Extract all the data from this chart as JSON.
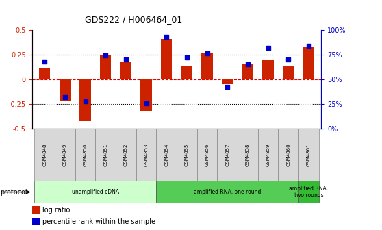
{
  "title": "GDS222 / H006464_01",
  "samples": [
    "GSM4848",
    "GSM4849",
    "GSM4850",
    "GSM4851",
    "GSM4852",
    "GSM4853",
    "GSM4854",
    "GSM4855",
    "GSM4856",
    "GSM4857",
    "GSM4858",
    "GSM4859",
    "GSM4860",
    "GSM4861"
  ],
  "log_ratio": [
    0.12,
    -0.22,
    -0.42,
    0.24,
    0.18,
    -0.32,
    0.41,
    0.13,
    0.26,
    -0.04,
    0.15,
    0.2,
    0.13,
    0.33
  ],
  "percentile": [
    68,
    32,
    28,
    74,
    70,
    26,
    93,
    72,
    76,
    42,
    65,
    82,
    70,
    84
  ],
  "bar_color": "#cc2200",
  "dot_color": "#0000cc",
  "ylim_left": [
    -0.5,
    0.5
  ],
  "ylim_right": [
    0,
    100
  ],
  "yticks_left": [
    -0.5,
    -0.25,
    0.0,
    0.25,
    0.5
  ],
  "ytick_labels_left": [
    "-0.5",
    "-0.25",
    "0",
    "0.25",
    "0.5"
  ],
  "yticks_right": [
    0,
    25,
    50,
    75,
    100
  ],
  "ytick_labels_right": [
    "0%",
    "25%",
    "50%",
    "75%",
    "100%"
  ],
  "protocol_groups": [
    {
      "label": "unamplified cDNA",
      "start": 0,
      "end": 5,
      "color": "#ccffcc"
    },
    {
      "label": "amplified RNA, one round",
      "start": 6,
      "end": 12,
      "color": "#55cc55"
    },
    {
      "label": "amplified RNA,\ntwo rounds",
      "start": 13,
      "end": 13,
      "color": "#33bb33"
    }
  ],
  "legend_items": [
    {
      "label": "log ratio",
      "color": "#cc2200"
    },
    {
      "label": "percentile rank within the sample",
      "color": "#0000cc"
    }
  ],
  "protocol_label": "protocol",
  "background_color": "#ffffff",
  "tick_color_left": "#cc2200",
  "tick_color_right": "#0000cc",
  "bar_width": 0.55,
  "dot_size": 20
}
